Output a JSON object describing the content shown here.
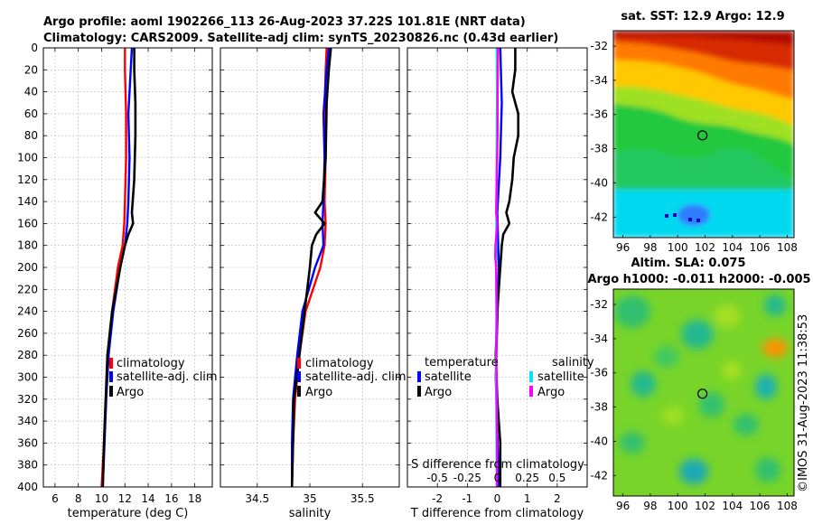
{
  "title": {
    "line1": "Argo profile: aoml 1902266_113 26-Aug-2023 37.22S 101.81E (NRT data)",
    "line2": "Climatology: CARS2009. Satellite-adj clim: synTS_20230826.nc (0.43d earlier)"
  },
  "chart_data": [
    {
      "type": "line",
      "id": "temperature",
      "xlabel": "temperature (deg C)",
      "ylabel": "",
      "xlim": [
        5,
        19.5
      ],
      "ylim": [
        400,
        0
      ],
      "xticks": [
        "6",
        "8",
        "10",
        "12",
        "14",
        "16",
        "18"
      ],
      "xtick_values": [
        6,
        8,
        10,
        12,
        14,
        16,
        18
      ],
      "yticks": [
        "0",
        "20",
        "40",
        "60",
        "80",
        "100",
        "120",
        "140",
        "160",
        "180",
        "200",
        "220",
        "240",
        "260",
        "280",
        "300",
        "320",
        "340",
        "360",
        "380",
        "400"
      ],
      "ytick_values": [
        0,
        20,
        40,
        60,
        80,
        100,
        120,
        140,
        160,
        180,
        200,
        220,
        240,
        260,
        280,
        300,
        320,
        340,
        360,
        380,
        400
      ],
      "grid": true,
      "legend": [
        "climatology",
        "satellite-adj. clim",
        "Argo"
      ],
      "series": [
        {
          "name": "climatology",
          "color": "#ff0000",
          "depth": [
            0,
            20,
            60,
            100,
            140,
            160,
            180,
            200,
            240,
            280,
            320,
            360,
            400
          ],
          "values": [
            12.0,
            12.0,
            12.1,
            12.1,
            12.0,
            11.95,
            11.8,
            11.4,
            10.9,
            10.6,
            10.35,
            10.2,
            10.0
          ]
        },
        {
          "name": "satellite-adj. clim",
          "color": "#0000ff",
          "depth": [
            0,
            20,
            60,
            100,
            140,
            160,
            180,
            200,
            240,
            280,
            320,
            360,
            400
          ],
          "values": [
            12.6,
            12.5,
            12.3,
            12.4,
            12.3,
            12.2,
            12.0,
            11.6,
            11.0,
            10.6,
            10.4,
            10.25,
            10.1
          ]
        },
        {
          "name": "Argo",
          "color": "#000000",
          "depth": [
            0,
            20,
            50,
            80,
            120,
            150,
            160,
            170,
            180,
            200,
            240,
            280,
            320,
            360,
            400
          ],
          "values": [
            12.8,
            12.8,
            12.9,
            12.9,
            12.8,
            12.6,
            12.7,
            12.3,
            12.0,
            11.6,
            10.9,
            10.5,
            10.35,
            10.2,
            10.1
          ]
        }
      ]
    },
    {
      "type": "line",
      "id": "salinity",
      "xlabel": "salinity",
      "xlim": [
        34.15,
        35.85
      ],
      "ylim": [
        400,
        0
      ],
      "xticks": [
        "34.5",
        "35",
        "35.5"
      ],
      "xtick_values": [
        34.5,
        35,
        35.5
      ],
      "grid": true,
      "legend": [
        "climatology",
        "satellite-adj. clim",
        "Argo"
      ],
      "series": [
        {
          "name": "climatology",
          "color": "#ff0000",
          "depth": [
            0,
            20,
            60,
            100,
            140,
            160,
            180,
            200,
            240,
            280,
            320,
            360,
            400
          ],
          "values": [
            35.16,
            35.15,
            35.14,
            35.15,
            35.14,
            35.15,
            35.14,
            35.1,
            34.96,
            34.9,
            34.86,
            34.84,
            34.83
          ]
        },
        {
          "name": "satellite-adj. clim",
          "color": "#0000ff",
          "depth": [
            0,
            20,
            60,
            100,
            140,
            160,
            180,
            200,
            240,
            280,
            320,
            360,
            400
          ],
          "values": [
            35.18,
            35.16,
            35.13,
            35.14,
            35.13,
            35.12,
            35.13,
            35.05,
            34.93,
            34.88,
            34.84,
            34.83,
            34.83
          ]
        },
        {
          "name": "Argo",
          "color": "#000000",
          "depth": [
            0,
            20,
            50,
            100,
            140,
            150,
            160,
            170,
            180,
            200,
            240,
            280,
            320,
            360,
            400
          ],
          "values": [
            35.2,
            35.18,
            35.16,
            35.15,
            35.12,
            35.05,
            35.14,
            35.06,
            35.02,
            35.0,
            34.95,
            34.9,
            34.85,
            34.84,
            34.83
          ]
        }
      ]
    },
    {
      "type": "line",
      "id": "difference",
      "xlabel": "T difference from climatology",
      "xlabel_top": "S difference from climatology",
      "xlim": [
        -3,
        3
      ],
      "ylim": [
        400,
        0
      ],
      "xticks": [
        "-2",
        "-1",
        "0",
        "1",
        "2"
      ],
      "xtick_values": [
        -2,
        -1,
        0,
        1,
        2
      ],
      "xticks_top": [
        "-0.5",
        "-0.25",
        "0",
        "0.25",
        "0.5"
      ],
      "grid": true,
      "legend_temperature_title": "temperature",
      "legend_salinity_title": "salinity",
      "legend_temperature": [
        "satellite",
        "Argo"
      ],
      "legend_salinity": [
        "satellite",
        "Argo"
      ],
      "series": [
        {
          "name": "T satellite",
          "color": "#0000ff",
          "depth": [
            0,
            50,
            100,
            150,
            200,
            250,
            300,
            350,
            400
          ],
          "values": [
            0.1,
            0.15,
            0.1,
            0.0,
            0.05,
            0.0,
            -0.05,
            0.0,
            0.05
          ]
        },
        {
          "name": "T Argo",
          "color": "#000000",
          "depth": [
            0,
            20,
            40,
            60,
            80,
            100,
            120,
            140,
            150,
            160,
            170,
            180,
            200,
            240,
            280,
            320,
            360,
            400
          ],
          "values": [
            0.6,
            0.6,
            0.5,
            0.7,
            0.7,
            0.55,
            0.5,
            0.4,
            0.3,
            0.4,
            0.2,
            0.15,
            0.1,
            0.0,
            -0.05,
            0.0,
            0.1,
            0.1
          ]
        },
        {
          "name": "S satellite",
          "color": "#00e5ff",
          "depth": [
            0,
            40,
            100,
            160,
            200,
            250,
            300,
            340,
            400
          ],
          "values": [
            -0.02,
            -0.01,
            -0.02,
            -0.03,
            -0.04,
            -0.03,
            -0.04,
            -0.03,
            -0.02
          ]
        },
        {
          "name": "S Argo",
          "color": "#ff00ff",
          "depth": [
            0,
            40,
            80,
            120,
            150,
            160,
            180,
            190,
            200,
            240,
            280,
            320,
            360,
            400
          ],
          "values": [
            0.02,
            0.01,
            0.01,
            -0.02,
            -0.04,
            0.0,
            -0.06,
            -0.07,
            -0.04,
            -0.02,
            -0.03,
            -0.02,
            -0.01,
            -0.01
          ]
        }
      ]
    },
    {
      "type": "heatmap",
      "id": "sst-map",
      "title": "sat. SST: 12.9 Argo: 12.9",
      "xticks": [
        "96",
        "98",
        "100",
        "102",
        "104",
        "106",
        "108"
      ],
      "xtick_values": [
        96,
        98,
        100,
        102,
        104,
        106,
        108
      ],
      "yticks": [
        "-32",
        "-34",
        "-36",
        "-38",
        "-40",
        "-42"
      ],
      "ytick_values": [
        -32,
        -34,
        -36,
        -38,
        -40,
        -42
      ],
      "xlim": [
        95.3,
        108.5
      ],
      "ylim": [
        -43.2,
        -31.1
      ],
      "argo_position": [
        101.81,
        -37.22
      ]
    },
    {
      "type": "heatmap",
      "id": "sla-map",
      "title_line1": "Altim. SLA: 0.075",
      "title_line2": "Argo h1000: -0.011 h2000: -0.005",
      "xticks": [
        "96",
        "98",
        "100",
        "102",
        "104",
        "106",
        "108"
      ],
      "xtick_values": [
        96,
        98,
        100,
        102,
        104,
        106,
        108
      ],
      "yticks": [
        "-32",
        "-34",
        "-36",
        "-38",
        "-40",
        "-42"
      ],
      "ytick_values": [
        -32,
        -34,
        -36,
        -38,
        -40,
        -42
      ],
      "xlim": [
        95.3,
        108.5
      ],
      "ylim": [
        -43.2,
        -31.1
      ],
      "argo_position": [
        101.81,
        -37.22
      ]
    }
  ],
  "footer": "©IMOS 31-Aug-2023 11:38:53"
}
